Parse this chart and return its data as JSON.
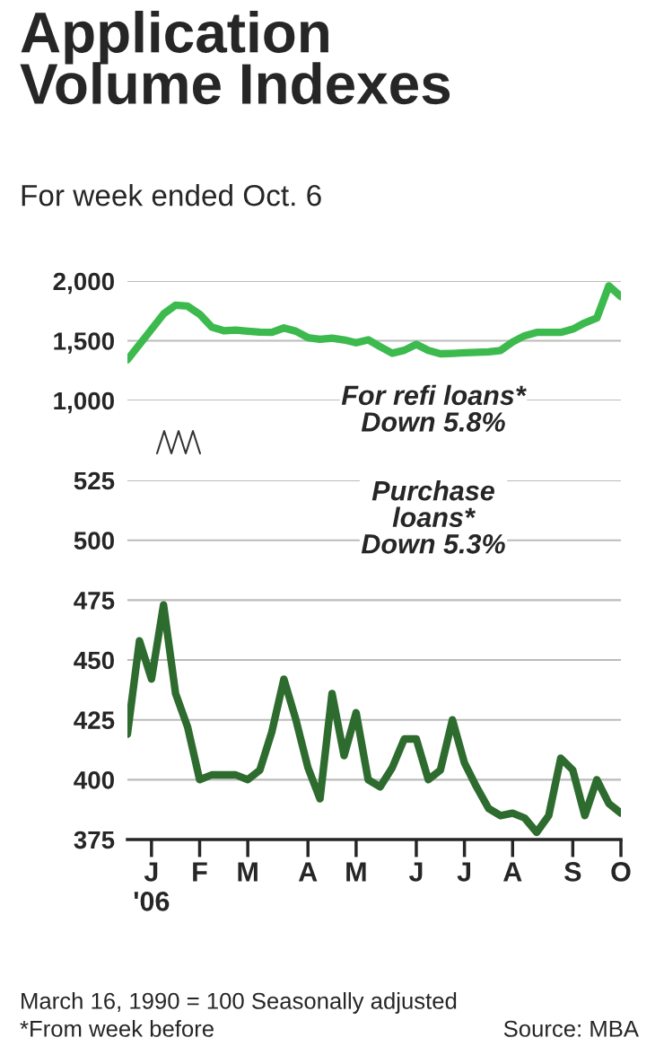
{
  "chart_data": [
    {
      "type": "line",
      "title": "Application\nVolume Indexes",
      "subtitle": "For week ended Oct. 6",
      "categories": [
        null,
        null,
        null,
        null,
        null,
        null,
        null,
        null,
        null,
        null,
        null,
        null,
        null,
        null,
        null,
        null,
        null,
        null,
        null,
        null,
        null,
        null,
        null,
        null,
        null,
        null,
        null,
        null,
        null,
        null,
        null,
        null,
        null,
        null,
        null,
        null,
        null,
        null,
        null,
        null,
        null,
        null
      ],
      "series": [
        {
          "name": "For refi loans*\nDown 5.8%",
          "color": "#3dba4e",
          "values": [
            1340,
            1468,
            1596,
            1724,
            1798,
            1790,
            1722,
            1615,
            1584,
            1589,
            1580,
            1572,
            1570,
            1607,
            1580,
            1526,
            1512,
            1522,
            1507,
            1483,
            1508,
            1450,
            1396,
            1420,
            1470,
            1419,
            1391,
            1394,
            1399,
            1403,
            1407,
            1419,
            1490,
            1542,
            1570,
            1570,
            1570,
            1597,
            1650,
            1690,
            1960,
            1870
          ]
        }
      ],
      "ylim": [
        1000,
        2000
      ],
      "yticks": [
        {
          "value": 1000,
          "label": "1,000"
        },
        {
          "value": 1500,
          "label": "1,500"
        },
        {
          "value": 2000,
          "label": "2,000"
        }
      ],
      "tick_labels": "y",
      "grid": "y",
      "legend": false,
      "marker": "none",
      "line_style": "solid"
    },
    {
      "type": "line",
      "categories": [
        null,
        null,
        "J\n'06",
        null,
        null,
        null,
        "F",
        null,
        null,
        null,
        "M",
        null,
        null,
        null,
        null,
        "A",
        null,
        null,
        null,
        "M",
        null,
        null,
        null,
        null,
        "J",
        null,
        null,
        null,
        "J",
        null,
        null,
        null,
        "A",
        null,
        null,
        null,
        null,
        "S",
        null,
        null,
        null,
        "O"
      ],
      "series": [
        {
          "name": "Purchase\nloans*\nDown 5.3%",
          "color": "#2e6b2e",
          "values": [
            419,
            458,
            442,
            473,
            436,
            422,
            400,
            402,
            402,
            402,
            400,
            404,
            420,
            442,
            425,
            405,
            392,
            436,
            410,
            428,
            400,
            397,
            405,
            417,
            417,
            400,
            404,
            425,
            407,
            397,
            388,
            385,
            386,
            384,
            378,
            385,
            409,
            404,
            385,
            400,
            390,
            386
          ]
        }
      ],
      "ylim": [
        375,
        525
      ],
      "yticks": [
        375,
        400,
        425,
        450,
        475,
        500,
        525
      ],
      "grid": "y",
      "legend": false,
      "marker": "none",
      "line_style": "solid",
      "annotations": [
        "March 16, 1990 = 100 Seasonally adjusted",
        "*From week before",
        "Source: MBA"
      ]
    }
  ]
}
